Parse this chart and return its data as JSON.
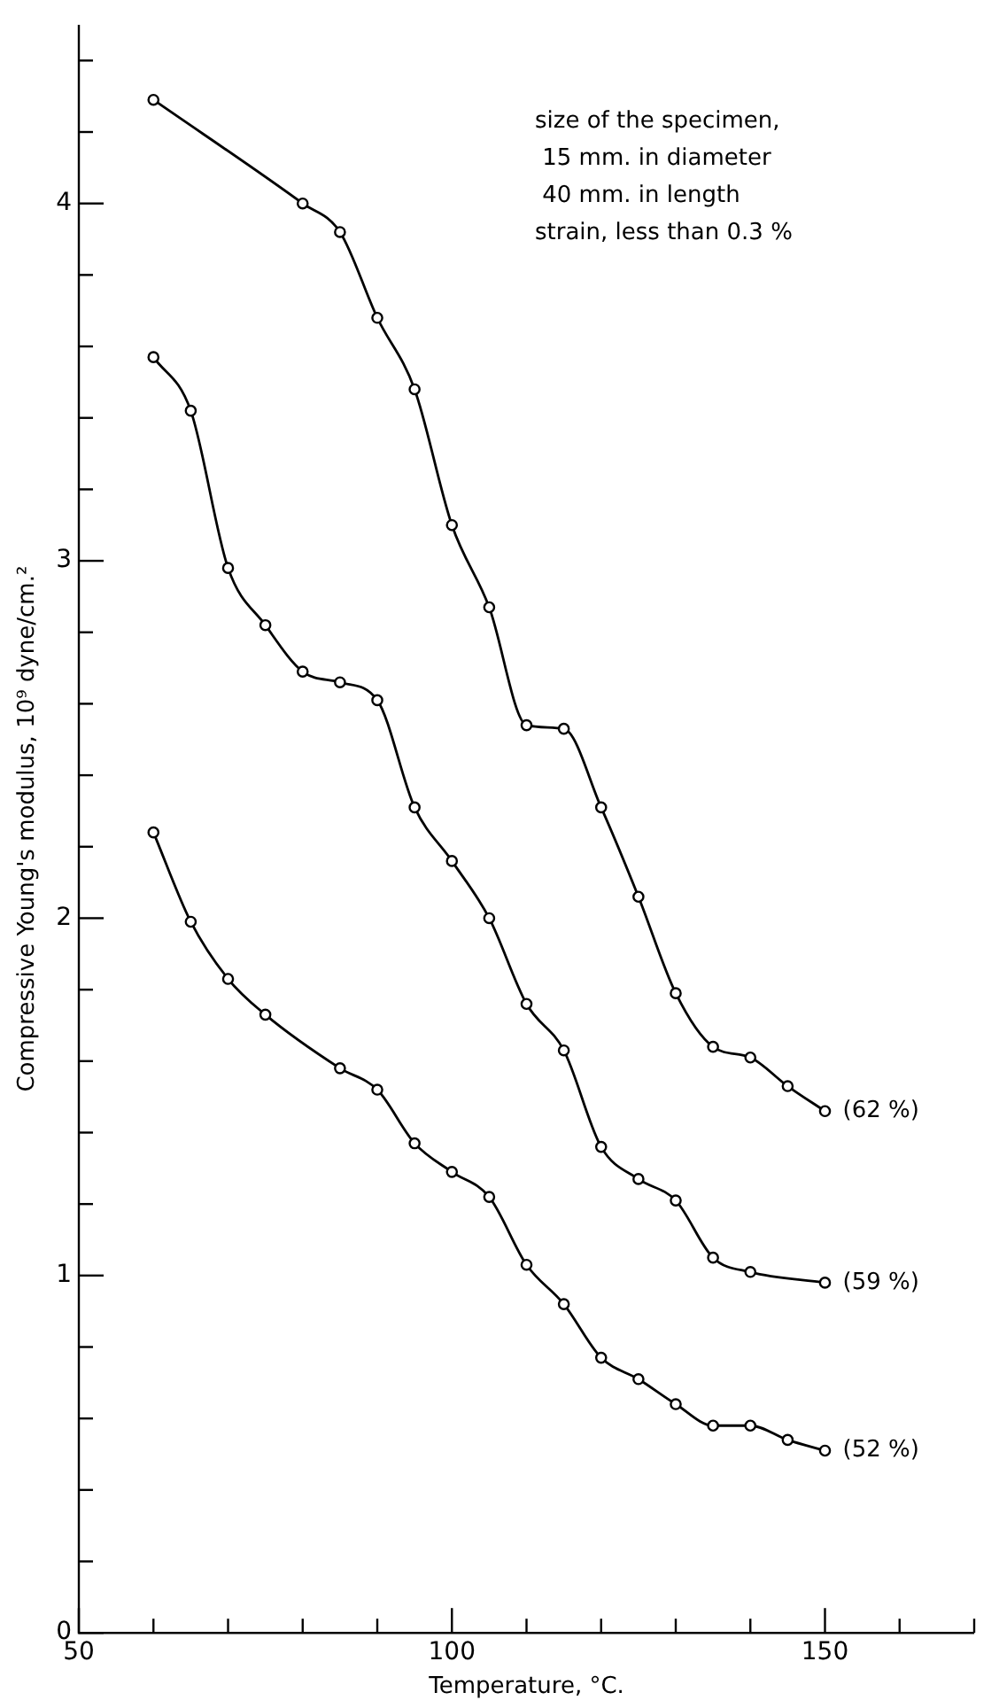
{
  "chart_data": {
    "type": "line",
    "xlabel": "Temperature, °C.",
    "ylabel": "Compressive Young's modulus, 10⁹ dyne/cm.²",
    "annotations": [
      "size of the specimen,",
      " 15 mm. in diameter",
      " 40 mm. in length",
      "strain, less than 0.3 %"
    ],
    "xlim": [
      50,
      170
    ],
    "xticks": [
      50,
      {
        "value": 60,
        "label": null
      },
      {
        "value": 70,
        "label": null
      },
      {
        "value": 80,
        "label": null
      },
      {
        "value": 90,
        "label": null
      },
      100,
      {
        "value": 110,
        "label": null
      },
      {
        "value": 120,
        "label": null
      },
      {
        "value": 130,
        "label": null
      },
      {
        "value": 140,
        "label": null
      },
      150,
      {
        "value": 160,
        "label": null
      },
      {
        "value": 170,
        "label": null
      }
    ],
    "ylim": [
      0,
      4.5
    ],
    "yticks": [
      0,
      {
        "value": 0.2,
        "label": null
      },
      {
        "value": 0.4,
        "label": null
      },
      {
        "value": 0.6,
        "label": null
      },
      {
        "value": 0.8,
        "label": null
      },
      1,
      {
        "value": 1.2,
        "label": null
      },
      {
        "value": 1.4,
        "label": null
      },
      {
        "value": 1.6,
        "label": null
      },
      {
        "value": 1.8,
        "label": null
      },
      2,
      {
        "value": 2.2,
        "label": null
      },
      {
        "value": 2.4,
        "label": null
      },
      {
        "value": 2.6,
        "label": null
      },
      {
        "value": 2.8,
        "label": null
      },
      3,
      {
        "value": 3.2,
        "label": null
      },
      {
        "value": 3.4,
        "label": null
      },
      {
        "value": 3.6,
        "label": null
      },
      {
        "value": 3.8,
        "label": null
      },
      4,
      {
        "value": 4.2,
        "label": null
      },
      {
        "value": 4.4,
        "label": null
      }
    ],
    "grid": false,
    "legend": false,
    "marker": "circle",
    "line_style": "solid",
    "series": [
      {
        "name": "(62 %)",
        "color": "#000000",
        "x": [
          60,
          80,
          85,
          90,
          95,
          100,
          105,
          110,
          115,
          120,
          125,
          130,
          135,
          140,
          145,
          150
        ],
        "values": [
          4.29,
          4.0,
          3.92,
          3.68,
          3.48,
          3.1,
          2.87,
          2.54,
          2.53,
          2.31,
          2.06,
          1.79,
          1.64,
          1.61,
          1.53,
          1.46
        ]
      },
      {
        "name": "(59 %)",
        "color": "#000000",
        "x": [
          60,
          65,
          70,
          75,
          80,
          85,
          90,
          95,
          100,
          105,
          110,
          115,
          120,
          125,
          130,
          135,
          140,
          150
        ],
        "values": [
          3.57,
          3.42,
          2.98,
          2.82,
          2.69,
          2.66,
          2.61,
          2.31,
          2.16,
          2.0,
          1.76,
          1.63,
          1.36,
          1.27,
          1.21,
          1.05,
          1.01,
          0.98
        ]
      },
      {
        "name": "(52 %)",
        "color": "#000000",
        "x": [
          60,
          65,
          70,
          75,
          85,
          90,
          95,
          100,
          105,
          110,
          115,
          120,
          125,
          130,
          135,
          140,
          145,
          150
        ],
        "values": [
          2.24,
          1.99,
          1.83,
          1.73,
          1.58,
          1.52,
          1.37,
          1.29,
          1.22,
          1.03,
          0.92,
          0.77,
          0.71,
          0.64,
          0.58,
          0.58,
          0.54,
          0.51
        ]
      }
    ]
  }
}
